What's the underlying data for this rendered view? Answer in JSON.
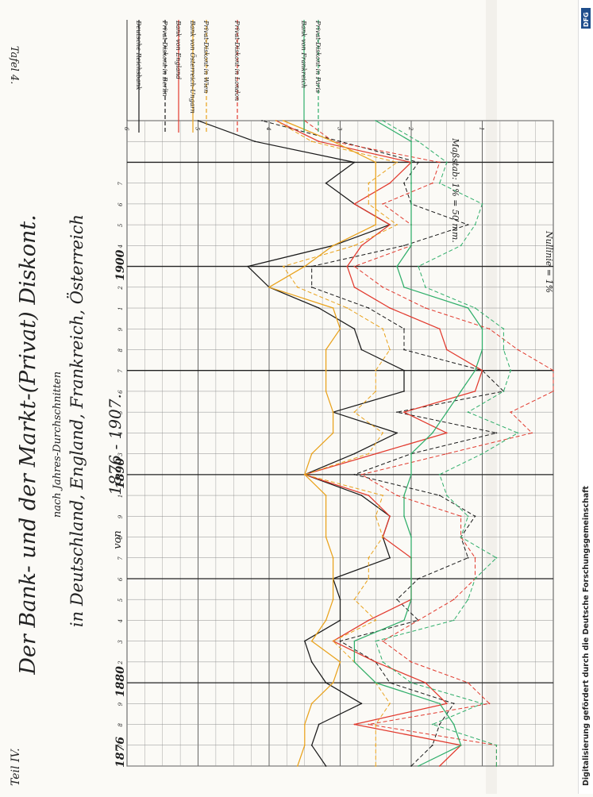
{
  "header": {
    "title": "Der Bank- und der Markt-(Privat) Diskont.",
    "subtitle": "nach Jahres-Durchschnitten",
    "regions": "in Deutschland, England, Frankreich, Österreich",
    "range_prefix": "von",
    "range": "1876 - 1907.",
    "part": "Teil IV.",
    "plate": "Tafel 4."
  },
  "credit": {
    "text": "Digitalisierung gefördert durch die Deutsche Forschungsgemeinschaft",
    "logo": "DFG"
  },
  "axis": {
    "scale_note": "Maßstab: 1% = 50 mm.",
    "zero_note": "Nullinie = 1%",
    "year_labels": [
      "1876",
      "1880",
      "1890",
      "1900"
    ],
    "minor_digits": [
      "7",
      "8",
      "9",
      "1",
      "2",
      "3",
      "4",
      "5",
      "6",
      "7",
      "8",
      "9",
      "1",
      "2",
      "3",
      "4",
      "5",
      "6",
      "7",
      "8",
      "9",
      "1",
      "2",
      "3",
      "4",
      "5",
      "6",
      "7"
    ],
    "percent_ticks": [
      "1",
      "2",
      "3",
      "4",
      "5",
      "6"
    ]
  },
  "chart_data": {
    "type": "line",
    "x": [
      1876,
      1877,
      1878,
      1879,
      1880,
      1881,
      1882,
      1883,
      1884,
      1885,
      1886,
      1887,
      1888,
      1889,
      1890,
      1891,
      1892,
      1893,
      1894,
      1895,
      1896,
      1897,
      1898,
      1899,
      1900,
      1901,
      1902,
      1903,
      1904,
      1905,
      1906,
      1907
    ],
    "ylim": [
      1,
      7
    ],
    "series": [
      {
        "name": "Deutsche Reichsbank",
        "color": "#1a1a1a",
        "dash": "solid",
        "values": [
          4.2,
          4.4,
          4.3,
          3.7,
          4.2,
          4.4,
          4.5,
          4.0,
          4.0,
          4.1,
          3.3,
          3.4,
          3.3,
          3.7,
          4.5,
          3.8,
          3.2,
          4.1,
          3.1,
          3.1,
          3.7,
          3.8,
          4.3,
          5.0,
          5.3,
          4.1,
          3.3,
          3.8,
          4.2,
          3.8,
          5.2,
          6.0
        ]
      },
      {
        "name": "Privat-Diskont in Berlin",
        "color": "#1a1a1a",
        "dash": "dashed",
        "values": [
          3.0,
          2.7,
          2.6,
          2.4,
          3.3,
          3.5,
          4.0,
          2.9,
          3.2,
          2.9,
          2.2,
          2.3,
          2.1,
          2.6,
          3.8,
          3.0,
          1.8,
          3.2,
          1.7,
          2.0,
          3.1,
          3.1,
          3.6,
          4.4,
          4.4,
          3.1,
          2.2,
          3.0,
          3.1,
          2.9,
          4.0,
          5.1
        ]
      },
      {
        "name": "Bank von England",
        "color": "#e23a2e",
        "dash": "solid",
        "values": [
          2.6,
          2.3,
          3.8,
          2.5,
          2.8,
          3.5,
          4.1,
          3.6,
          3.0,
          3.0,
          3.0,
          3.4,
          3.3,
          3.6,
          4.5,
          3.5,
          2.5,
          3.1,
          2.1,
          2.0,
          2.5,
          2.6,
          3.3,
          3.8,
          3.9,
          3.7,
          3.3,
          3.8,
          3.3,
          3.0,
          4.3,
          4.9
        ]
      },
      {
        "name": "Privat-Diskont in London",
        "color": "#e23a2e",
        "dash": "dashed",
        "values": [
          1.8,
          1.8,
          3.6,
          1.9,
          2.2,
          3.0,
          3.4,
          2.9,
          2.4,
          2.1,
          2.1,
          2.3,
          2.3,
          3.2,
          3.7,
          2.5,
          1.3,
          1.6,
          1.0,
          1.0,
          1.5,
          1.9,
          2.8,
          3.4,
          3.8,
          3.0,
          3.0,
          3.4,
          2.7,
          2.6,
          4.1,
          4.5
        ]
      },
      {
        "name": "Bank von Österreich-Ungarn",
        "color": "#e9a21c",
        "dash": "solid",
        "values": [
          4.6,
          4.5,
          4.5,
          4.4,
          4.1,
          4.0,
          4.4,
          4.2,
          4.1,
          4.1,
          4.1,
          4.2,
          4.2,
          4.2,
          4.5,
          4.4,
          4.1,
          4.1,
          4.2,
          4.2,
          4.2,
          4.0,
          4.1,
          5.0,
          4.5,
          4.1,
          3.5,
          3.5,
          3.5,
          3.5,
          4.1,
          4.8
        ]
      },
      {
        "name": "Privat-Diskont in Wien",
        "color": "#e9a21c",
        "dash": "dashed",
        "values": [
          3.5,
          3.5,
          3.5,
          3.3,
          3.5,
          3.8,
          4.1,
          3.5,
          3.8,
          3.6,
          3.6,
          3.4,
          3.5,
          3.4,
          4.5,
          3.6,
          3.4,
          3.8,
          3.5,
          3.5,
          3.3,
          3.4,
          3.9,
          4.6,
          4.8,
          3.8,
          3.2,
          3.6,
          3.6,
          3.2,
          4.4,
          4.9
        ]
      },
      {
        "name": "Bank von Frankreich",
        "color": "#2fae6a",
        "dash": "solid",
        "values": [
          2.9,
          2.3,
          2.4,
          2.6,
          3.5,
          3.8,
          3.8,
          3.1,
          3.0,
          3.0,
          3.0,
          3.0,
          3.1,
          3.1,
          3.0,
          3.0,
          2.7,
          2.5,
          2.3,
          2.1,
          2.0,
          2.0,
          2.2,
          3.1,
          3.2,
          3.0,
          3.0,
          3.0,
          3.0,
          3.0,
          3.0,
          3.5
        ]
      },
      {
        "name": "Privat-Diskont in Paris",
        "color": "#2fae6a",
        "dash": "dashed",
        "values": [
          1.8,
          1.8,
          2.7,
          2.0,
          3.0,
          3.4,
          3.5,
          2.4,
          2.2,
          2.1,
          1.8,
          2.3,
          2.2,
          2.5,
          2.6,
          2.0,
          1.5,
          2.2,
          1.7,
          1.6,
          1.7,
          1.7,
          2.1,
          2.8,
          2.9,
          2.3,
          2.1,
          2.0,
          2.6,
          2.5,
          2.9,
          3.4
        ]
      }
    ]
  }
}
